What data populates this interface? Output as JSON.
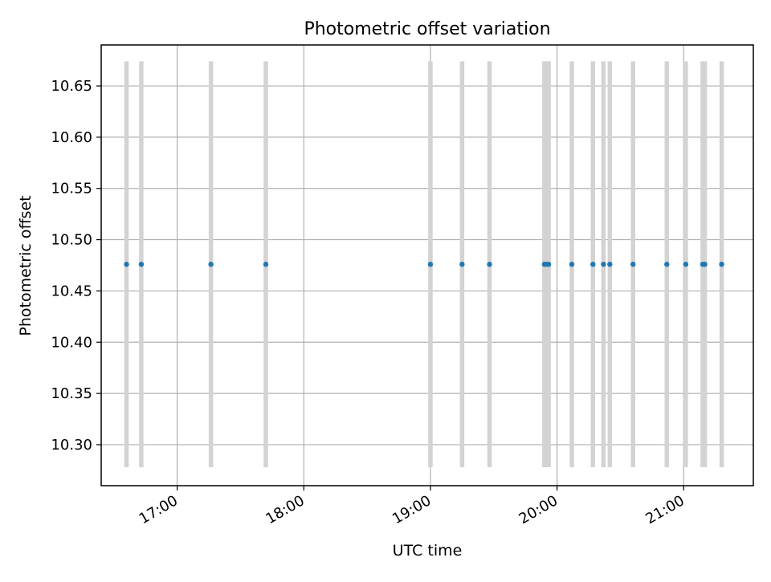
{
  "chart_data": {
    "type": "scatter",
    "title": "Photometric offset variation",
    "xlabel": "UTC time",
    "ylabel": "Photometric offset",
    "x_axis_type": "time",
    "xlim": [
      "16:24",
      "21:33"
    ],
    "ylim": [
      10.26,
      10.69
    ],
    "grid": true,
    "x_ticks": [
      "17:00",
      "18:00",
      "19:00",
      "20:00",
      "21:00"
    ],
    "y_ticks": [
      "10.30",
      "10.35",
      "10.40",
      "10.45",
      "10.50",
      "10.55",
      "10.60",
      "10.65"
    ],
    "marker_color": "#1f77b4",
    "band_color": "#d3d3d3",
    "y_band": [
      10.278,
      10.674
    ],
    "points": [
      {
        "x": "16:36",
        "y": 10.476
      },
      {
        "x": "16:43",
        "y": 10.476
      },
      {
        "x": "17:16",
        "y": 10.476
      },
      {
        "x": "17:42",
        "y": 10.476
      },
      {
        "x": "19:00",
        "y": 10.476
      },
      {
        "x": "19:15",
        "y": 10.476
      },
      {
        "x": "19:28",
        "y": 10.476
      },
      {
        "x": "19:54",
        "y": 10.476
      },
      {
        "x": "19:55",
        "y": 10.476
      },
      {
        "x": "19:56",
        "y": 10.476
      },
      {
        "x": "20:07",
        "y": 10.476
      },
      {
        "x": "20:17",
        "y": 10.476
      },
      {
        "x": "20:22",
        "y": 10.476
      },
      {
        "x": "20:25",
        "y": 10.476
      },
      {
        "x": "20:36",
        "y": 10.476
      },
      {
        "x": "20:52",
        "y": 10.476
      },
      {
        "x": "21:01",
        "y": 10.476
      },
      {
        "x": "21:09",
        "y": 10.476
      },
      {
        "x": "21:10",
        "y": 10.476
      },
      {
        "x": "21:18",
        "y": 10.476
      }
    ]
  }
}
